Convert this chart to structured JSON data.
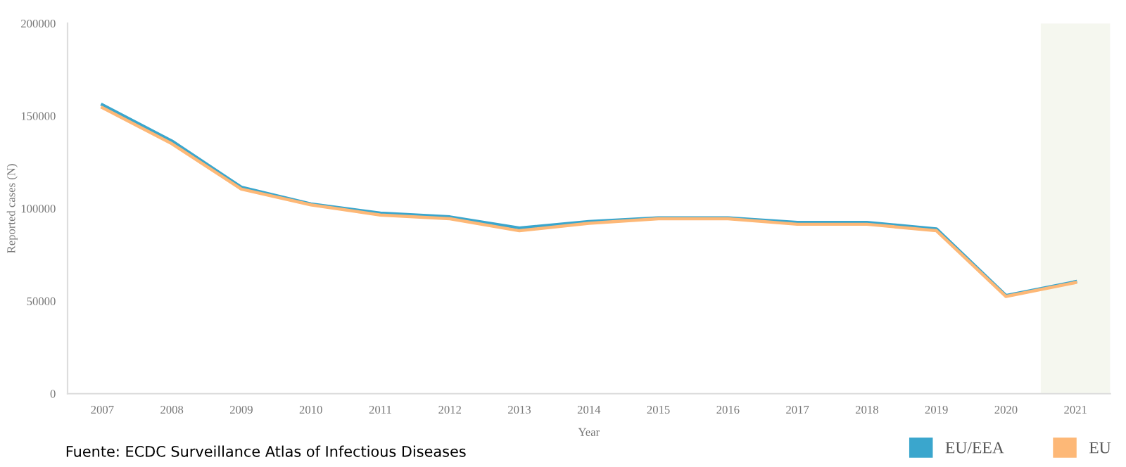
{
  "chart_data": {
    "type": "line",
    "xlabel": "Year",
    "ylabel": "Reported cases (N)",
    "x": [
      2007,
      2008,
      2009,
      2010,
      2011,
      2012,
      2013,
      2014,
      2015,
      2016,
      2017,
      2018,
      2019,
      2020,
      2021
    ],
    "series": [
      {
        "name": "EU/EEA",
        "color": "#3aa6cd",
        "values": [
          156000,
          136500,
          111500,
          102500,
          97500,
          95500,
          89500,
          93000,
          95000,
          95000,
          92500,
          92500,
          89000,
          53000,
          60500
        ]
      },
      {
        "name": "EU",
        "color": "#fdb877",
        "values": [
          154500,
          135000,
          110500,
          102000,
          96500,
          94500,
          88000,
          92000,
          94500,
          94500,
          91500,
          91500,
          88000,
          52500,
          60000
        ]
      }
    ],
    "xlim": [
      2006.5,
      2021.5
    ],
    "ylim": [
      0,
      200000
    ],
    "xticks": [
      2007,
      2008,
      2009,
      2010,
      2011,
      2012,
      2013,
      2014,
      2015,
      2016,
      2017,
      2018,
      2019,
      2020,
      2021
    ],
    "yticks": [
      0,
      50000,
      100000,
      150000,
      200000
    ],
    "bands": [
      {
        "axis": "x",
        "from": 2020.5,
        "to": 2021.5,
        "color": "#f5f7ef"
      }
    ],
    "grid": false,
    "legend": "bottom right",
    "marker": "none",
    "line_style": "solid",
    "annotations": [
      "Fuente: ECDC Surveillance Atlas of Infectious Diseases"
    ]
  }
}
